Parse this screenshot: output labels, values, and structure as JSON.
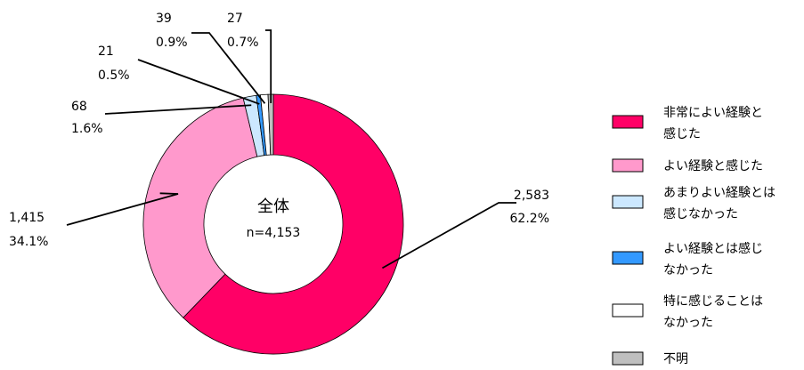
{
  "chart_data": {
    "type": "pie",
    "variant": "donut",
    "center_title": "全体",
    "center_subtitle": "n=4,153",
    "slices": [
      {
        "label": "非常によい経験と感じた",
        "legend_lines": [
          "非常によい経験と",
          "感じた"
        ],
        "count": 2583,
        "count_text": "2,583",
        "percent": 62.2,
        "percent_text": "62.2%",
        "color": "#ff0066"
      },
      {
        "label": "よい経験と感じた",
        "legend_lines": [
          "よい経験と感じた"
        ],
        "count": 1415,
        "count_text": "1,415",
        "percent": 34.1,
        "percent_text": "34.1%",
        "color": "#ff99cc"
      },
      {
        "label": "あまりよい経験とは感じなかった",
        "legend_lines": [
          "あまりよい経験とは",
          "感じなかった"
        ],
        "count": 68,
        "count_text": "68",
        "percent": 1.6,
        "percent_text": "1.6%",
        "color": "#cce8ff"
      },
      {
        "label": "よい経験とは感じなかった",
        "legend_lines": [
          "よい経験とは感じ",
          "なかった"
        ],
        "count": 21,
        "count_text": "21",
        "percent": 0.5,
        "percent_text": "0.5%",
        "color": "#3399ff"
      },
      {
        "label": "特に感じることはなかった",
        "legend_lines": [
          "特に感じることは",
          "なかった"
        ],
        "count": 39,
        "count_text": "39",
        "percent": 0.9,
        "percent_text": "0.9%",
        "color": "#ffffff"
      },
      {
        "label": "不明",
        "legend_lines": [
          "不明"
        ],
        "count": 27,
        "count_text": "27",
        "percent": 0.7,
        "percent_text": "0.7%",
        "color": "#bfbfbf"
      }
    ],
    "legend_position": "right"
  }
}
